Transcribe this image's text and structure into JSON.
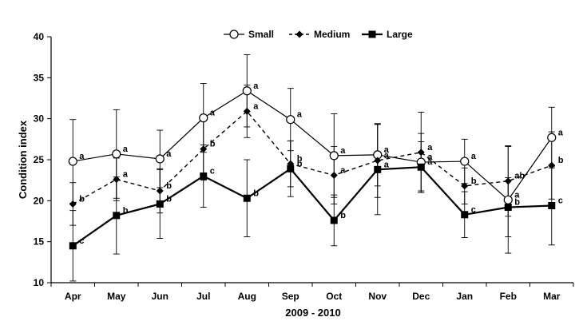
{
  "chart_data": {
    "type": "line",
    "title": "",
    "xlabel": "2009 - 2010",
    "ylabel": "Condition index",
    "ylim": [
      10,
      40
    ],
    "yticks": [
      10,
      15,
      20,
      25,
      30,
      35,
      40
    ],
    "categories": [
      "Apr",
      "May",
      "Jun",
      "Jul",
      "Aug",
      "Sep",
      "Oct",
      "Nov",
      "Dec",
      "Jan",
      "Feb",
      "Mar"
    ],
    "grid": false,
    "legend_position": "top-center",
    "series": [
      {
        "name": "Small",
        "marker": "open-circle",
        "line_style": "solid",
        "values": [
          24.8,
          25.7,
          25.1,
          30.1,
          33.4,
          29.9,
          25.5,
          25.6,
          24.7,
          24.8,
          20.1,
          27.7
        ],
        "errors": [
          5.1,
          5.4,
          3.5,
          4.2,
          4.4,
          3.8,
          5.1,
          3.8,
          3.5,
          2.7,
          6.5,
          3.7
        ],
        "labels": [
          "a",
          "a",
          "a",
          "a",
          "a",
          "a",
          "a",
          "a",
          "a",
          "a",
          "a",
          "a"
        ]
      },
      {
        "name": "Medium",
        "marker": "filled-diamond",
        "line_style": "dashed",
        "values": [
          19.6,
          22.6,
          21.2,
          26.3,
          30.9,
          24.5,
          23.1,
          24.9,
          25.9,
          21.8,
          22.4,
          24.3
        ],
        "errors": [
          2.6,
          2.6,
          2.7,
          3.8,
          3.2,
          2.8,
          3.5,
          4.5,
          4.9,
          2.2,
          4.3,
          4.1
        ],
        "labels": [
          "b",
          "a",
          "b",
          "b",
          "a",
          "b",
          "a",
          "a",
          "a",
          "b",
          "ab",
          "b"
        ]
      },
      {
        "name": "Large",
        "marker": "filled-square",
        "line_style": "solid-thick",
        "values": [
          14.5,
          18.2,
          19.6,
          23.0,
          20.3,
          23.9,
          17.6,
          23.8,
          24.1,
          18.3,
          19.2,
          19.4
        ],
        "errors": [
          4.3,
          4.7,
          4.2,
          3.8,
          4.7,
          3.4,
          3.1,
          5.5,
          3.1,
          2.8,
          3.6,
          4.8
        ],
        "labels": [
          "c",
          "b",
          "b",
          "c",
          "b",
          "b",
          "b",
          "a",
          "a",
          "c",
          "b",
          "c"
        ]
      }
    ]
  }
}
